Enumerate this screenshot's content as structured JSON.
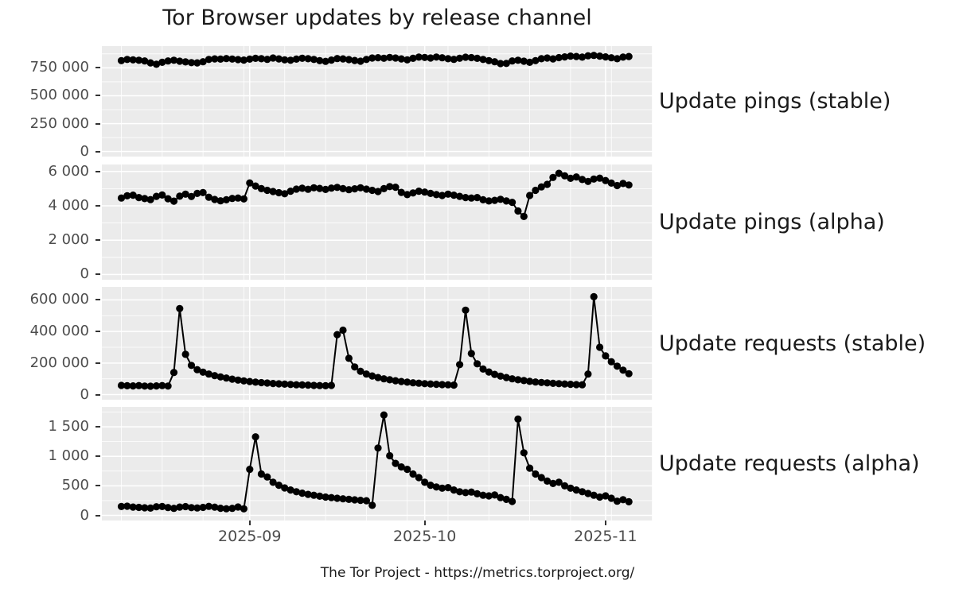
{
  "title": "Tor Browser updates by release channel",
  "caption": "The Tor Project - https://metrics.torproject.org/",
  "chart_data": {
    "type": "line",
    "title": "Tor Browser updates by release channel",
    "xlabel": "",
    "ylabel": "",
    "legend": false,
    "grid": true,
    "style": {
      "panel_bg": "#EBEBEB",
      "grid_color": "#FFFFFF",
      "line_color": "#000000",
      "point_color": "#000000",
      "axis_text_color": "#4D4D4D",
      "strip_text_color": "#1A1A1A",
      "tick_color": "#333333"
    },
    "x_axis": {
      "start_date": "2025-08-10",
      "end_date": "2025-11-05",
      "cadence": "daily",
      "tick_labels": [
        "2025-09",
        "2025-10",
        "2025-11"
      ],
      "tick_day_indices": [
        22,
        52,
        83
      ],
      "minor_tick_day_indices": [
        0,
        7,
        14,
        21,
        28,
        35,
        42,
        49,
        56,
        63,
        70,
        77,
        84,
        91
      ]
    },
    "panels": [
      {
        "label": "Update pings (stable)",
        "ylim": [
          0,
          900000
        ],
        "yticks": [
          0,
          250000,
          500000,
          750000
        ],
        "ytick_labels": [
          "0",
          "250 000",
          "500 000",
          "750 000"
        ],
        "values": [
          815000,
          825000,
          822000,
          818000,
          812000,
          795000,
          782000,
          800000,
          812000,
          818000,
          810000,
          803000,
          797000,
          795000,
          805000,
          825000,
          830000,
          828000,
          833000,
          829000,
          824000,
          820000,
          828000,
          835000,
          832000,
          826000,
          838000,
          830000,
          822000,
          818000,
          828000,
          836000,
          832000,
          825000,
          815000,
          808000,
          820000,
          833000,
          830000,
          824000,
          816000,
          810000,
          825000,
          838000,
          841000,
          836000,
          843000,
          838000,
          830000,
          822000,
          835000,
          846000,
          843000,
          838000,
          847000,
          840000,
          832000,
          826000,
          836000,
          845000,
          842000,
          835000,
          825000,
          815000,
          805000,
          788000,
          790000,
          812000,
          818000,
          810000,
          800000,
          815000,
          832000,
          838000,
          830000,
          842000,
          848000,
          855000,
          852000,
          846000,
          858000,
          862000,
          855000,
          848000,
          840000,
          832000,
          846000,
          852000
        ]
      },
      {
        "label": "Update pings (alpha)",
        "ylim": [
          0,
          6100
        ],
        "yticks": [
          0,
          2000,
          4000,
          6000
        ],
        "ytick_labels": [
          "0",
          "2 000",
          "4 000",
          "6 000"
        ],
        "values": [
          4450,
          4580,
          4620,
          4480,
          4420,
          4360,
          4550,
          4630,
          4410,
          4270,
          4560,
          4680,
          4540,
          4720,
          4770,
          4500,
          4370,
          4290,
          4350,
          4430,
          4450,
          4400,
          5330,
          5150,
          5000,
          4900,
          4830,
          4760,
          4700,
          4850,
          4970,
          5020,
          4960,
          5050,
          5010,
          4950,
          5030,
          5070,
          5000,
          4940,
          4990,
          5050,
          4970,
          4900,
          4830,
          5000,
          5120,
          5080,
          4780,
          4650,
          4750,
          4850,
          4800,
          4720,
          4650,
          4600,
          4680,
          4620,
          4550,
          4480,
          4450,
          4480,
          4350,
          4280,
          4320,
          4380,
          4280,
          4200,
          3700,
          3380,
          4600,
          4900,
          5100,
          5250,
          5650,
          5890,
          5750,
          5600,
          5680,
          5530,
          5420,
          5560,
          5610,
          5470,
          5320,
          5180,
          5300,
          5210
        ]
      },
      {
        "label": "Update requests (stable)",
        "ylim": [
          0,
          650000
        ],
        "yticks": [
          0,
          200000,
          400000,
          600000
        ],
        "ytick_labels": [
          "0",
          "200 000",
          "400 000",
          "600 000"
        ],
        "values": [
          58000,
          56000,
          55000,
          57000,
          54000,
          53000,
          55000,
          57000,
          54000,
          140000,
          545000,
          255000,
          185000,
          158000,
          142000,
          130000,
          120000,
          112000,
          105000,
          98000,
          92000,
          87000,
          83000,
          79000,
          76000,
          73000,
          70000,
          68000,
          66000,
          64000,
          62000,
          61000,
          60000,
          58000,
          57000,
          56000,
          58000,
          380000,
          408000,
          230000,
          175000,
          148000,
          130000,
          118000,
          108000,
          100000,
          94000,
          88000,
          83000,
          79000,
          75000,
          72000,
          69000,
          67000,
          65000,
          63000,
          62000,
          60000,
          190000,
          535000,
          260000,
          195000,
          162000,
          143000,
          128000,
          117000,
          108000,
          100000,
          94000,
          89000,
          84000,
          80000,
          77000,
          74000,
          71000,
          69000,
          67000,
          65000,
          63000,
          62000,
          130000,
          620000,
          300000,
          245000,
          208000,
          180000,
          155000,
          132000
        ]
      },
      {
        "label": "Update requests (alpha)",
        "ylim": [
          0,
          1750
        ],
        "yticks": [
          0,
          500,
          1000,
          1500
        ],
        "ytick_labels": [
          "0",
          "500",
          "1 000",
          "1 500"
        ],
        "values": [
          150,
          155,
          140,
          135,
          128,
          122,
          145,
          150,
          132,
          118,
          140,
          148,
          130,
          125,
          135,
          152,
          138,
          120,
          112,
          118,
          142,
          110,
          780,
          1330,
          700,
          650,
          560,
          510,
          465,
          430,
          400,
          375,
          355,
          340,
          325,
          310,
          300,
          290,
          280,
          270,
          262,
          255,
          248,
          170,
          1140,
          1700,
          1010,
          880,
          820,
          780,
          700,
          640,
          560,
          510,
          480,
          460,
          470,
          430,
          400,
          385,
          395,
          365,
          340,
          330,
          345,
          300,
          270,
          235,
          1630,
          1060,
          800,
          700,
          640,
          580,
          540,
          560,
          500,
          460,
          430,
          400,
          370,
          340,
          310,
          330,
          290,
          240,
          265,
          230
        ]
      }
    ]
  }
}
